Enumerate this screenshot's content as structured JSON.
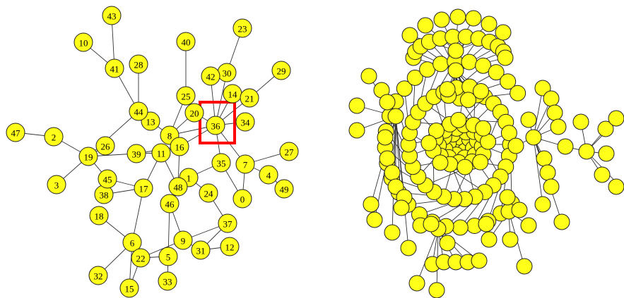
{
  "colors": {
    "node_fill": "#ffff1a",
    "node_stroke": "#222222",
    "edge": "#333333",
    "highlight": "#ff0000"
  },
  "left_graph": {
    "highlighted_node": "36",
    "nodes": [
      "0",
      "1",
      "2",
      "3",
      "4",
      "5",
      "6",
      "7",
      "8",
      "9",
      "10",
      "11",
      "12",
      "13",
      "14",
      "15",
      "16",
      "17",
      "18",
      "19",
      "20",
      "21",
      "22",
      "23",
      "24",
      "25",
      "26",
      "27",
      "28",
      "29",
      "30",
      "31",
      "32",
      "33",
      "34",
      "35",
      "36",
      "37",
      "38",
      "39",
      "40",
      "41",
      "42",
      "43",
      "44",
      "45",
      "46",
      "47",
      "48",
      "49"
    ],
    "edges": [
      [
        "43",
        "41"
      ],
      [
        "10",
        "41"
      ],
      [
        "41",
        "44"
      ],
      [
        "28",
        "44"
      ],
      [
        "44",
        "13"
      ],
      [
        "44",
        "19"
      ],
      [
        "13",
        "8"
      ],
      [
        "26",
        "19"
      ],
      [
        "39",
        "19"
      ],
      [
        "47",
        "2"
      ],
      [
        "2",
        "19"
      ],
      [
        "19",
        "3"
      ],
      [
        "19",
        "45"
      ],
      [
        "45",
        "38"
      ],
      [
        "45",
        "17"
      ],
      [
        "38",
        "17"
      ],
      [
        "17",
        "11"
      ],
      [
        "17",
        "6"
      ],
      [
        "18",
        "6"
      ],
      [
        "6",
        "22"
      ],
      [
        "6",
        "32"
      ],
      [
        "6",
        "15"
      ],
      [
        "22",
        "15"
      ],
      [
        "22",
        "5"
      ],
      [
        "22",
        "9"
      ],
      [
        "5",
        "33"
      ],
      [
        "5",
        "46"
      ],
      [
        "9",
        "46"
      ],
      [
        "9",
        "31"
      ],
      [
        "9",
        "37"
      ],
      [
        "31",
        "12"
      ],
      [
        "31",
        "37"
      ],
      [
        "46",
        "48"
      ],
      [
        "46",
        "1"
      ],
      [
        "48",
        "1"
      ],
      [
        "48",
        "16"
      ],
      [
        "48",
        "11"
      ],
      [
        "39",
        "11"
      ],
      [
        "39",
        "16"
      ],
      [
        "11",
        "16"
      ],
      [
        "16",
        "8"
      ],
      [
        "8",
        "25"
      ],
      [
        "25",
        "40"
      ],
      [
        "8",
        "20"
      ],
      [
        "8",
        "36"
      ],
      [
        "16",
        "36"
      ],
      [
        "36",
        "20"
      ],
      [
        "36",
        "42"
      ],
      [
        "36",
        "30"
      ],
      [
        "36",
        "14"
      ],
      [
        "36",
        "21"
      ],
      [
        "36",
        "34"
      ],
      [
        "30",
        "23"
      ],
      [
        "21",
        "29"
      ],
      [
        "36",
        "35"
      ],
      [
        "36",
        "7"
      ],
      [
        "35",
        "1"
      ],
      [
        "7",
        "0"
      ],
      [
        "7",
        "4"
      ],
      [
        "7",
        "27"
      ],
      [
        "4",
        "49"
      ],
      [
        "35",
        "0"
      ],
      [
        "1",
        "24"
      ],
      [
        "24",
        "37"
      ]
    ]
  },
  "right_graph": {
    "edges_visible": true
  }
}
